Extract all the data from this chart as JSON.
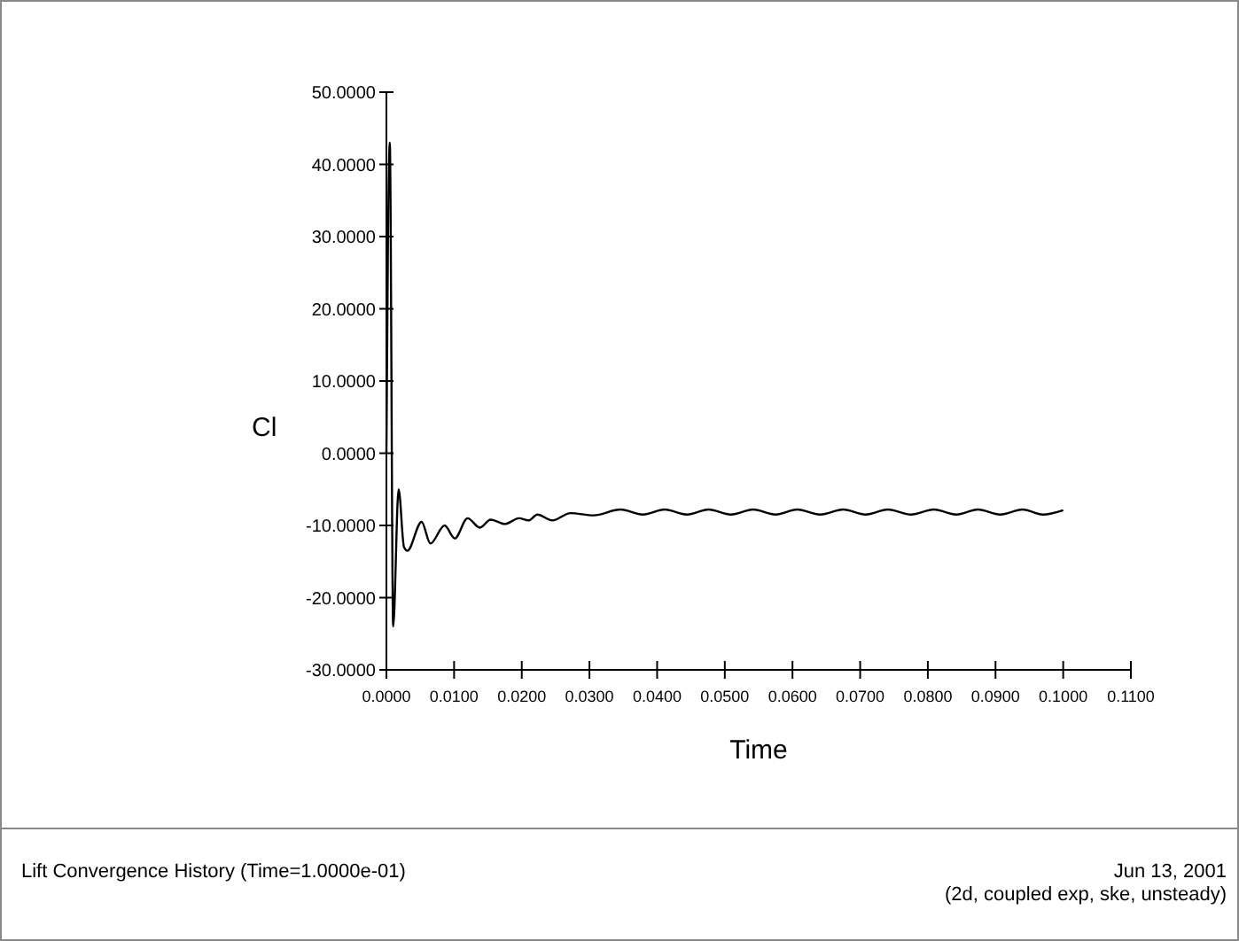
{
  "chart_data": {
    "type": "line",
    "xlabel": "Time",
    "ylabel": "Cl",
    "annotations": [
      "Lift Convergence History  (Time=1.0000e-01)",
      "Jun 13, 2001",
      "(2d, coupled exp, ske, unsteady)"
    ],
    "xlim": [
      0,
      0.11
    ],
    "ylim": [
      -30,
      50
    ],
    "xticks": [
      {
        "value": 0,
        "label": "0.0000"
      },
      {
        "value": 0.01,
        "label": "0.0100"
      },
      {
        "value": 0.02,
        "label": "0.0200"
      },
      {
        "value": 0.03,
        "label": "0.0300"
      },
      {
        "value": 0.04,
        "label": "0.0400"
      },
      {
        "value": 0.05,
        "label": "0.0500"
      },
      {
        "value": 0.06,
        "label": "0.0600"
      },
      {
        "value": 0.07,
        "label": "0.0700"
      },
      {
        "value": 0.08,
        "label": "0.0800"
      },
      {
        "value": 0.09,
        "label": "0.0900"
      },
      {
        "value": 0.1,
        "label": "0.1000"
      },
      {
        "value": 0.11,
        "label": "0.1100"
      }
    ],
    "yticks": [
      {
        "value": -30,
        "label": "-30.0000"
      },
      {
        "value": -20,
        "label": "-20.0000"
      },
      {
        "value": -10,
        "label": "-10.0000"
      },
      {
        "value": 0,
        "label": "0.0000"
      },
      {
        "value": 10,
        "label": "10.0000"
      },
      {
        "value": 20,
        "label": "20.0000"
      },
      {
        "value": 30,
        "label": "30.0000"
      },
      {
        "value": 40,
        "label": "40.0000"
      },
      {
        "value": 50,
        "label": "50.0000"
      }
    ],
    "grid": false,
    "marker": "none",
    "line_style": "solid",
    "series": [
      {
        "color": "#000000",
        "x": [
          0,
          0.0005,
          0.001,
          0.0018,
          0.0026,
          0.0031,
          0.0052,
          0.0065,
          0.0086,
          0.0101,
          0.012,
          0.0138,
          0.0154,
          0.0175,
          0.0196,
          0.021,
          0.0223,
          0.0245,
          0.0272,
          0.0306,
          0.0346,
          0.0379,
          0.0411,
          0.0444,
          0.0476,
          0.0509,
          0.0542,
          0.0575,
          0.0607,
          0.0641,
          0.0675,
          0.0708,
          0.0741,
          0.0775,
          0.0809,
          0.0842,
          0.0874,
          0.0907,
          0.094,
          0.097,
          0.1
        ],
        "values": [
          0,
          43,
          -24,
          -5,
          -13,
          -13.5,
          -9.5,
          -12.5,
          -10,
          -11.8,
          -9,
          -10.3,
          -9.2,
          -9.8,
          -9,
          -9.3,
          -8.5,
          -9.3,
          -8.3,
          -8.6,
          -7.8,
          -8.5,
          -7.8,
          -8.5,
          -7.8,
          -8.5,
          -7.8,
          -8.5,
          -7.8,
          -8.5,
          -7.8,
          -8.5,
          -7.8,
          -8.5,
          -7.8,
          -8.5,
          -7.8,
          -8.5,
          -7.8,
          -8.5,
          -7.9
        ]
      }
    ]
  }
}
